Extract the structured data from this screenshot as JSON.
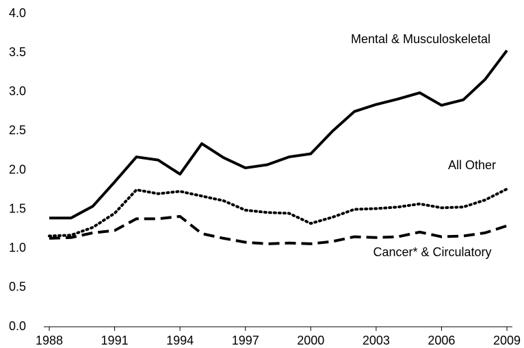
{
  "chart_data": {
    "type": "line",
    "x": [
      1988,
      1989,
      1990,
      1991,
      1992,
      1993,
      1994,
      1995,
      1996,
      1997,
      1998,
      1999,
      2000,
      2001,
      2002,
      2003,
      2004,
      2005,
      2006,
      2007,
      2008,
      2009
    ],
    "series": [
      {
        "name": "Mental & Musculoskeletal",
        "color": "#000000",
        "dash": "solid",
        "values": [
          1.39,
          1.39,
          1.54,
          1.85,
          2.17,
          2.13,
          1.95,
          2.34,
          2.16,
          2.03,
          2.07,
          2.17,
          2.21,
          2.5,
          2.75,
          2.84,
          2.91,
          2.99,
          2.83,
          2.9,
          3.16,
          3.53
        ]
      },
      {
        "name": "All Other",
        "color": "#000000",
        "dash": "dotted",
        "values": [
          1.16,
          1.17,
          1.27,
          1.45,
          1.75,
          1.7,
          1.73,
          1.67,
          1.61,
          1.49,
          1.46,
          1.45,
          1.32,
          1.4,
          1.5,
          1.51,
          1.53,
          1.57,
          1.52,
          1.53,
          1.62,
          1.76
        ]
      },
      {
        "name": "Cancer* & Circulatory",
        "color": "#000000",
        "dash": "dashed",
        "values": [
          1.13,
          1.14,
          1.2,
          1.23,
          1.38,
          1.38,
          1.41,
          1.19,
          1.13,
          1.08,
          1.06,
          1.07,
          1.06,
          1.09,
          1.15,
          1.14,
          1.15,
          1.21,
          1.15,
          1.16,
          1.2,
          1.29
        ]
      }
    ],
    "xlim": [
      1988,
      2009
    ],
    "xticks": [
      1988,
      1991,
      1994,
      1997,
      2000,
      2003,
      2006,
      2009
    ],
    "ylim": [
      0,
      4
    ],
    "yticks": [
      {
        "value": 0,
        "label": "0.0"
      },
      0.5,
      {
        "value": 1,
        "label": "1.0"
      },
      1.5,
      {
        "value": 2,
        "label": "2.0"
      },
      2.5,
      {
        "value": 3,
        "label": "3.0"
      },
      3.5,
      {
        "value": 4,
        "label": "4.0"
      }
    ]
  }
}
